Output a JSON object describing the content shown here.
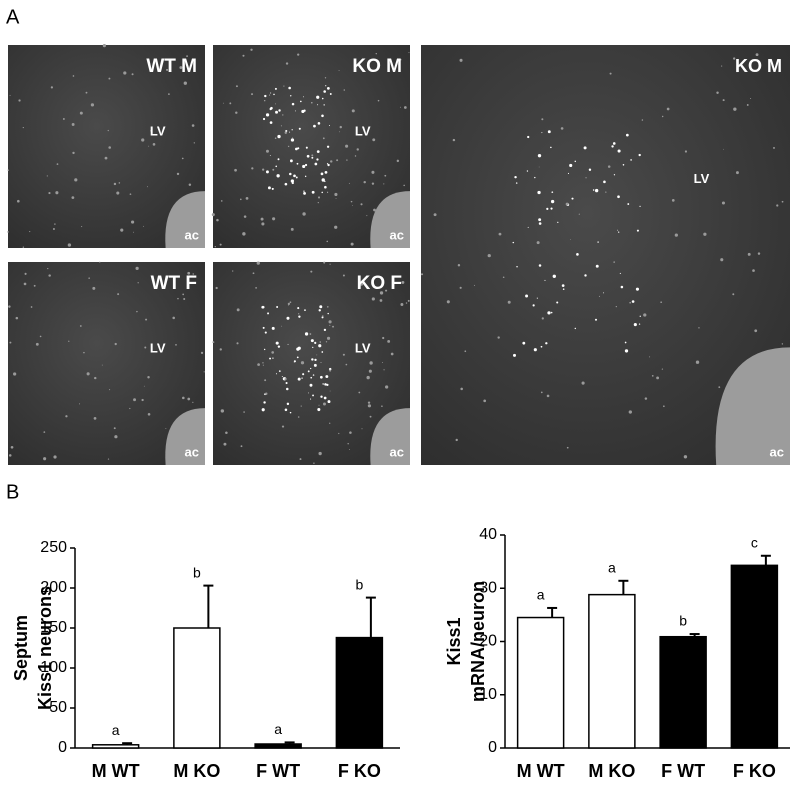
{
  "panel_labels": [
    "A",
    "B"
  ],
  "micrographs": [
    {
      "title": "WT M",
      "labels": [
        "LV",
        "ac"
      ]
    },
    {
      "title": "KO M",
      "labels": [
        "LV",
        "ac"
      ]
    },
    {
      "title": "WT F",
      "labels": [
        "LV",
        "ac"
      ]
    },
    {
      "title": "KO F",
      "labels": [
        "LV",
        "ac"
      ]
    },
    {
      "title": "KO M",
      "labels": [
        "LV",
        "ac"
      ]
    }
  ],
  "chart_data": [
    {
      "type": "bar",
      "ylabel": [
        "Septum",
        "Kiss1 neurons"
      ],
      "categories": [
        "M WT",
        "M KO",
        "F WT",
        "F KO"
      ],
      "values": [
        4,
        150,
        5,
        138
      ],
      "errors": [
        2,
        53,
        2,
        50
      ],
      "colors": [
        "#ffffff",
        "#ffffff",
        "#000000",
        "#000000"
      ],
      "annotations": [
        "a",
        "b",
        "a",
        "b"
      ],
      "ylim": [
        0,
        250
      ],
      "yticks": [
        0,
        50,
        100,
        150,
        200,
        250
      ]
    },
    {
      "type": "bar",
      "ylabel": [
        "Kiss1",
        "mRNA/neuron"
      ],
      "categories": [
        "M WT",
        "M KO",
        "F WT",
        "F KO"
      ],
      "values": [
        24.5,
        28.8,
        20.9,
        34.3
      ],
      "errors": [
        1.8,
        2.6,
        0.5,
        1.8
      ],
      "colors": [
        "#ffffff",
        "#ffffff",
        "#000000",
        "#000000"
      ],
      "annotations": [
        "a",
        "a",
        "b",
        "c"
      ],
      "ylim": [
        0,
        40
      ],
      "yticks": [
        0,
        10,
        20,
        30,
        40
      ]
    }
  ]
}
